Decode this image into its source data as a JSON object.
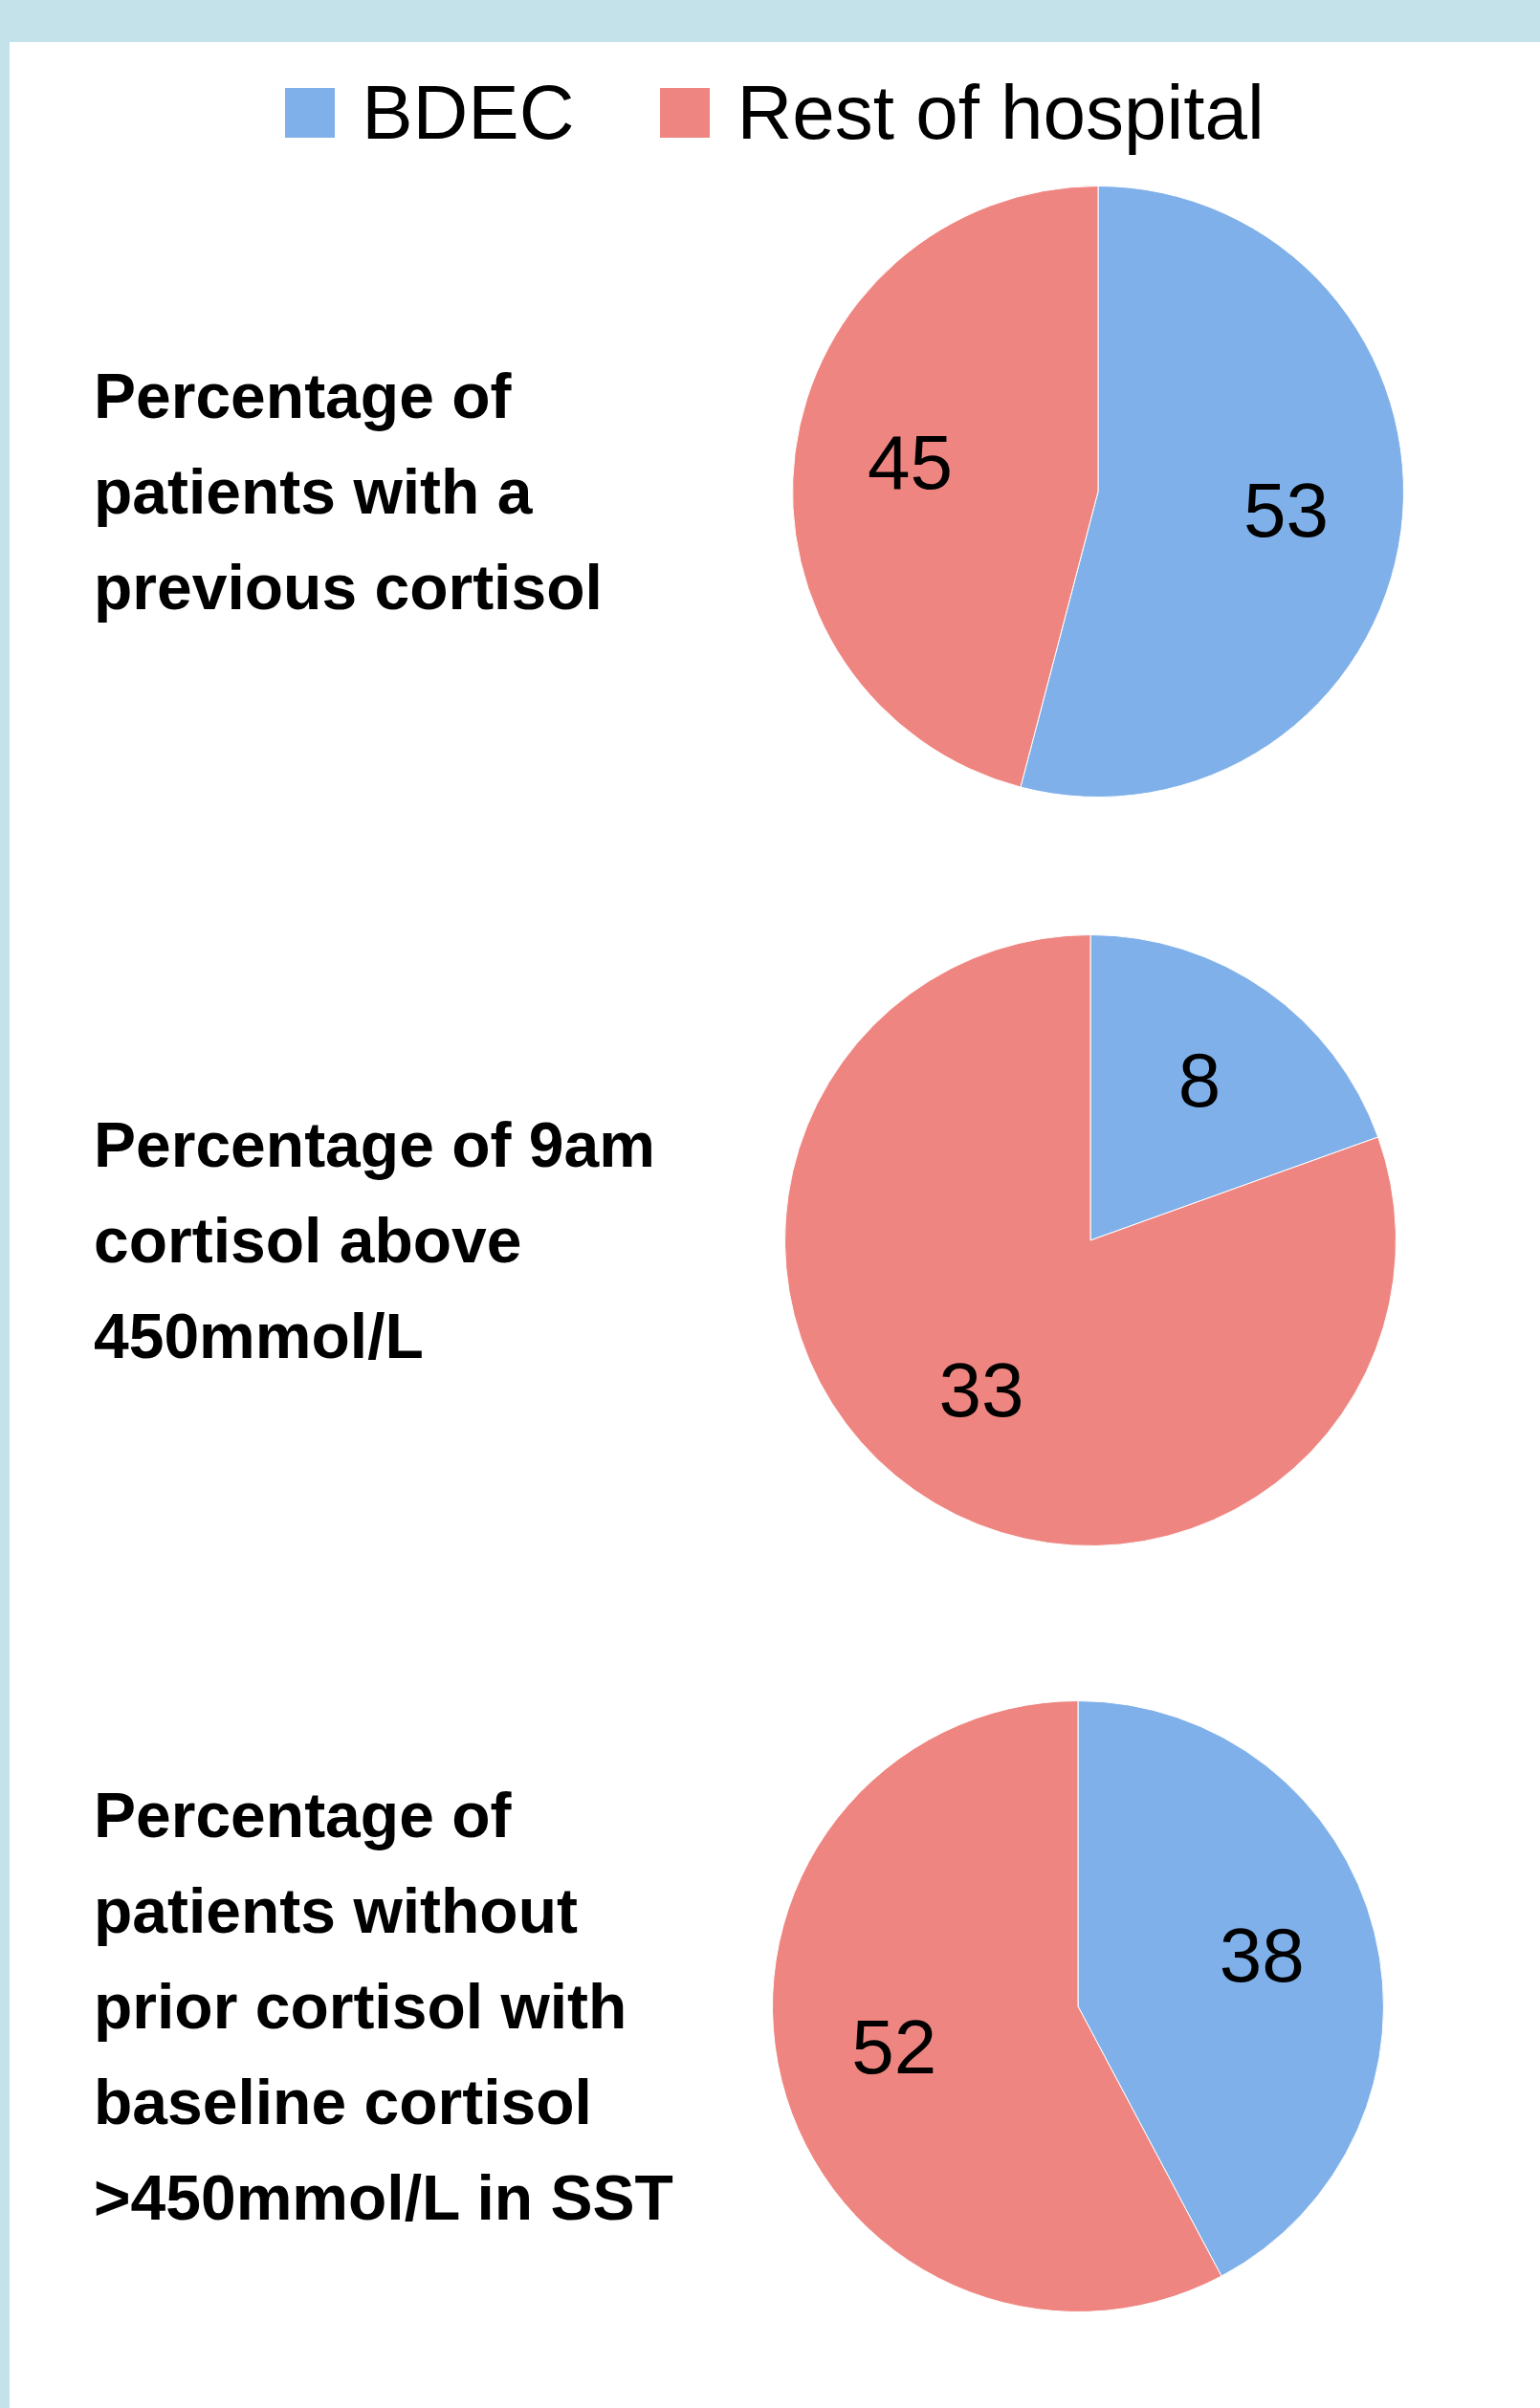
{
  "chart_data": [
    {
      "type": "pie",
      "title": "Percentage of patients with a previous cortisol",
      "categories": [
        "BDEC",
        "Rest of hospital"
      ],
      "values": [
        53,
        45
      ],
      "colors": [
        "#7fb0ea",
        "#ee8580"
      ],
      "data_labels": true,
      "legend": "top"
    },
    {
      "type": "pie",
      "title": "Percentage of 9am cortisol above 450mmol/L",
      "categories": [
        null,
        null
      ],
      "values": [
        8,
        33
      ],
      "colors": [
        "#7fb0ea",
        "#ee8580"
      ],
      "data_labels": true
    },
    {
      "type": "pie",
      "title": "Percentage of patients without prior cortisol with baseline cortisol >450mmol/L in SST",
      "categories": [
        null,
        null
      ],
      "values": [
        38,
        52
      ],
      "colors": [
        "#7fb0ea",
        "#ee8580"
      ],
      "data_labels": true
    }
  ]
}
